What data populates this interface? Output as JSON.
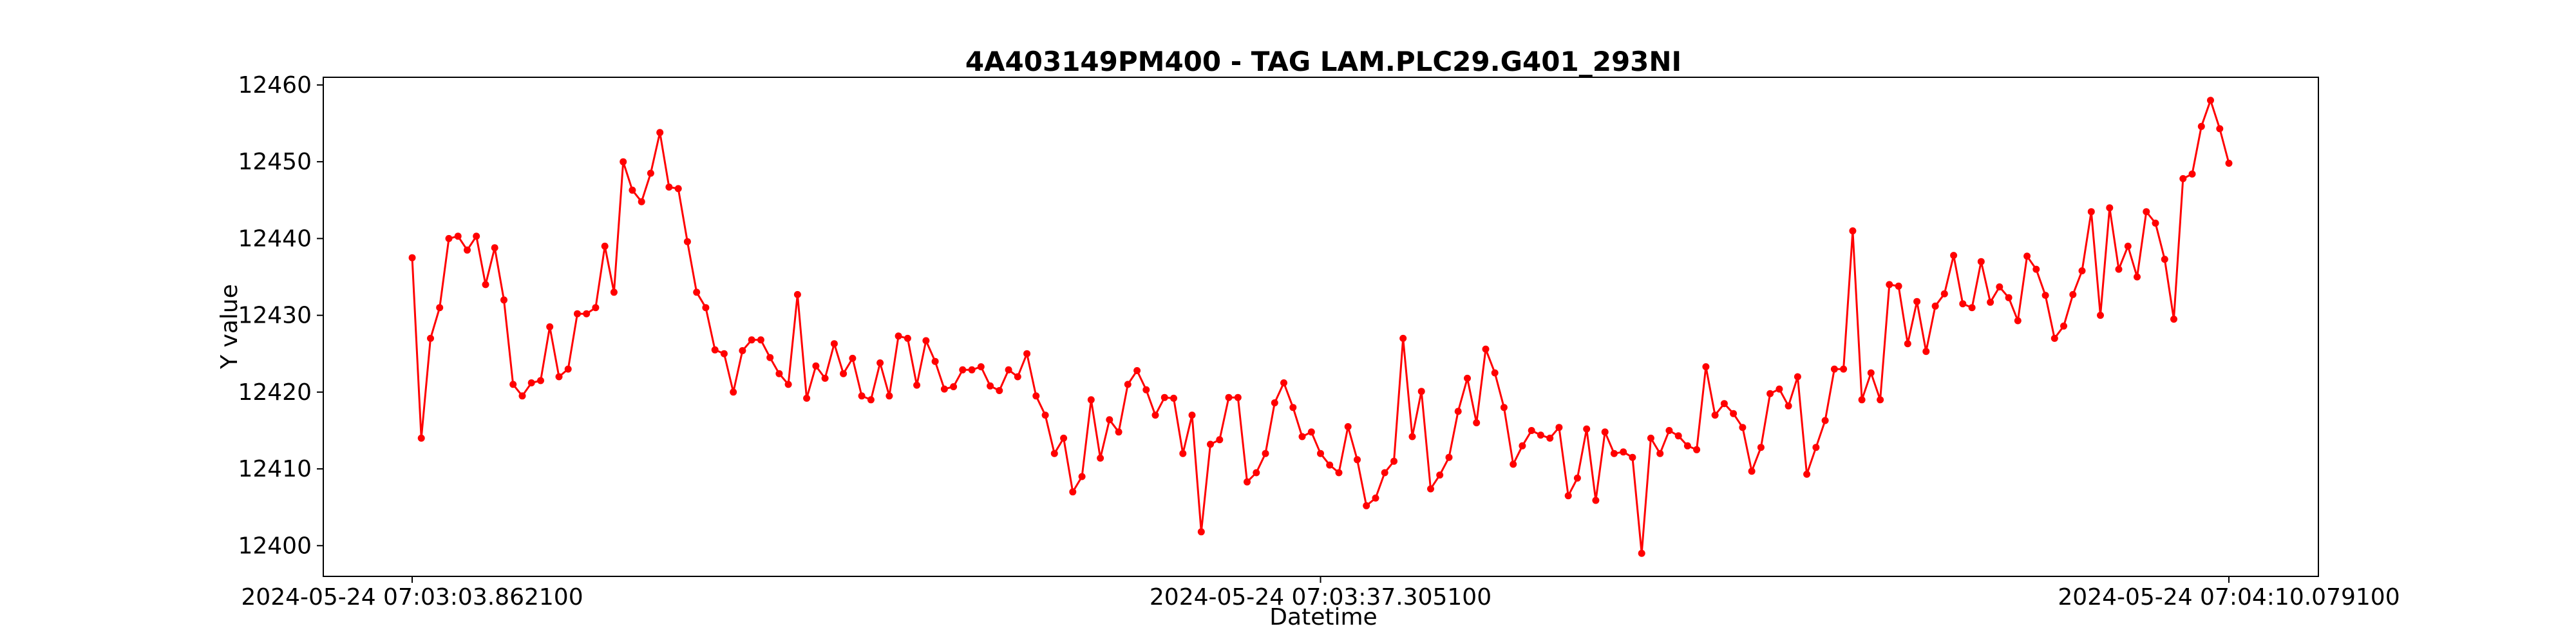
{
  "chart_data": {
    "type": "line",
    "title": "4A403149PM400 - TAG LAM.PLC29.G401_293NI",
    "xlabel": "Datetime",
    "ylabel": "Y value",
    "x_tick_labels": [
      "2024-05-24 07:03:03.862100",
      "2024-05-24 07:03:37.305100",
      "2024-05-24 07:04:10.079100"
    ],
    "y_ticks": [
      12400,
      12410,
      12420,
      12430,
      12440,
      12450,
      12460
    ],
    "ylim": [
      12396,
      12461
    ],
    "grid": false,
    "legend": false,
    "series_color": "#ff0000",
    "series": [
      {
        "values": [
          12437.5,
          12414.0,
          12427.0,
          12431.0,
          12440.0,
          12440.3,
          12438.5,
          12440.3,
          12434.0,
          12438.8,
          12432.0,
          12421.0,
          12419.5,
          12421.2,
          12421.5,
          12428.5,
          12422.0,
          12423.0,
          12430.2,
          12430.2,
          12431.0,
          12439.0,
          12433.0,
          12450.0,
          12446.3,
          12444.8,
          12448.5,
          12453.8,
          12446.7,
          12446.5,
          12439.6,
          12433.0,
          12431.0,
          12425.5,
          12425.0,
          12420.0,
          12425.4,
          12426.8,
          12426.8,
          12424.5,
          12422.4,
          12421.0,
          12432.7,
          12419.2,
          12423.4,
          12421.8,
          12426.3,
          12422.4,
          12424.4,
          12419.5,
          12419.0,
          12423.8,
          12419.5,
          12427.3,
          12427.0,
          12420.9,
          12426.7,
          12424.0,
          12420.4,
          12420.7,
          12422.9,
          12422.9,
          12423.3,
          12420.8,
          12420.2,
          12422.9,
          12422.0,
          12425.0,
          12419.5,
          12417.0,
          12412.0,
          12414.0,
          12407.0,
          12409.0,
          12419.0,
          12411.4,
          12416.4,
          12414.8,
          12421.0,
          12422.8,
          12420.3,
          12417.0,
          12419.3,
          12419.2,
          12412.0,
          12417.0,
          12401.8,
          12413.2,
          12413.8,
          12419.3,
          12419.3,
          12408.3,
          12409.5,
          12412.0,
          12418.6,
          12421.2,
          12418.0,
          12414.2,
          12414.8,
          12412.0,
          12410.5,
          12409.5,
          12415.5,
          12411.2,
          12405.2,
          12406.2,
          12409.5,
          12411.0,
          12427.0,
          12414.2,
          12420.1,
          12407.4,
          12409.2,
          12411.5,
          12417.5,
          12421.8,
          12416.0,
          12425.6,
          12422.5,
          12418.0,
          12410.6,
          12413.0,
          12415.0,
          12414.4,
          12414.0,
          12415.4,
          12406.5,
          12408.8,
          12415.2,
          12405.9,
          12414.8,
          12412.0,
          12412.2,
          12411.5,
          12399.0,
          12414.0,
          12412.0,
          12415.0,
          12414.3,
          12413.0,
          12412.5,
          12423.3,
          12417.0,
          12418.5,
          12417.2,
          12415.4,
          12409.7,
          12412.8,
          12419.8,
          12420.4,
          12418.2,
          12422.0,
          12409.3,
          12412.8,
          12416.3,
          12423.0,
          12423.0,
          12441.0,
          12419.0,
          12422.5,
          12419.0,
          12434.0,
          12433.8,
          12426.3,
          12431.8,
          12425.3,
          12431.2,
          12432.8,
          12437.8,
          12431.5,
          12431.0,
          12437.0,
          12431.7,
          12433.7,
          12432.3,
          12429.3,
          12437.7,
          12436.0,
          12432.6,
          12427.0,
          12428.6,
          12432.7,
          12435.8,
          12443.5,
          12430.0,
          12444.0,
          12436.0,
          12439.0,
          12435.0,
          12443.5,
          12442.0,
          12437.3,
          12429.5,
          12447.8,
          12448.4,
          12454.6,
          12458.0,
          12454.3,
          12449.8
        ]
      }
    ]
  }
}
